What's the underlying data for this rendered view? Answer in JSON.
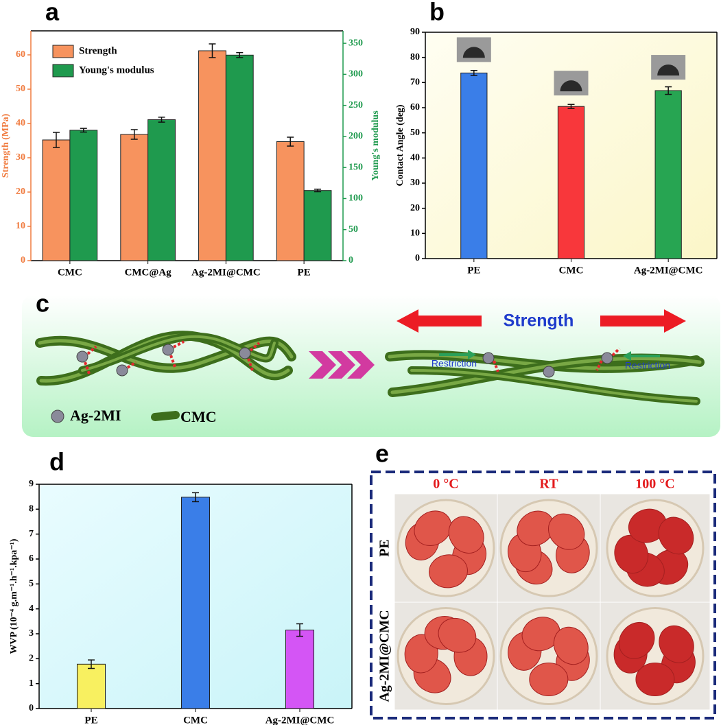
{
  "chart_data": [
    {
      "panel": "a",
      "type": "bar",
      "categories": [
        "CMC",
        "CMC@Ag",
        "Ag-2MI@CMC",
        "PE"
      ],
      "series": [
        {
          "name": "Strength",
          "color": "#f7935e",
          "values": [
            35.2,
            36.8,
            61.2,
            34.7
          ],
          "errors": [
            2.2,
            1.4,
            2.0,
            1.3
          ]
        },
        {
          "name": "Young's modulus",
          "color": "#1f9a4e",
          "axis": "y2",
          "values": [
            210,
            227,
            331,
            113
          ],
          "errors": [
            3,
            4,
            4,
            2
          ]
        }
      ],
      "ylabel": "Strength (MPa)",
      "y2label": "Young's modulus",
      "ycolor": "#f07b3f",
      "y2color": "#1f9a4e",
      "ylim": [
        0,
        67
      ],
      "yticks": [
        0,
        10,
        20,
        30,
        40,
        50,
        60
      ],
      "y2lim": [
        0,
        370
      ],
      "y2ticks": [
        0,
        50,
        100,
        150,
        200,
        250,
        300,
        350
      ],
      "legend": "upper left"
    },
    {
      "panel": "b",
      "type": "bar",
      "categories": [
        "PE",
        "CMC",
        "Ag-2MI@CMC"
      ],
      "values": [
        73.8,
        60.5,
        66.8
      ],
      "errors": [
        1.0,
        0.8,
        1.5
      ],
      "colors": [
        "#3a7ee8",
        "#f8373b",
        "#27a552"
      ],
      "ylabel": "Contact Angle (deg)",
      "ylim": [
        0,
        90
      ],
      "yticks": [
        0,
        10,
        20,
        30,
        40,
        50,
        60,
        70,
        80,
        90
      ]
    },
    {
      "panel": "d",
      "type": "bar",
      "categories": [
        "PE",
        "CMC",
        "Ag-2MI@CMC"
      ],
      "values": [
        1.78,
        8.48,
        3.15
      ],
      "errors": [
        0.17,
        0.18,
        0.25
      ],
      "colors": [
        "#f8f060",
        "#3a7ee8",
        "#d455f5"
      ],
      "ylabel": "WVP (10⁻⁴ g.m⁻¹.h⁻¹.kpa⁻¹)",
      "ylim": [
        0,
        9
      ],
      "yticks": [
        0,
        1,
        2,
        3,
        4,
        5,
        6,
        7,
        8,
        9
      ]
    }
  ],
  "diagram": {
    "panel": "c",
    "title": "Strength",
    "restriction_left": "Restriction",
    "restriction_right": "Restriction",
    "legend_particle": "Ag-2MI",
    "legend_fiber": "CMC"
  },
  "photos": {
    "panel": "e",
    "columns": [
      "0 °C",
      "RT",
      "100 °C"
    ],
    "rows": [
      "PE",
      "Ag-2MI@CMC"
    ]
  }
}
